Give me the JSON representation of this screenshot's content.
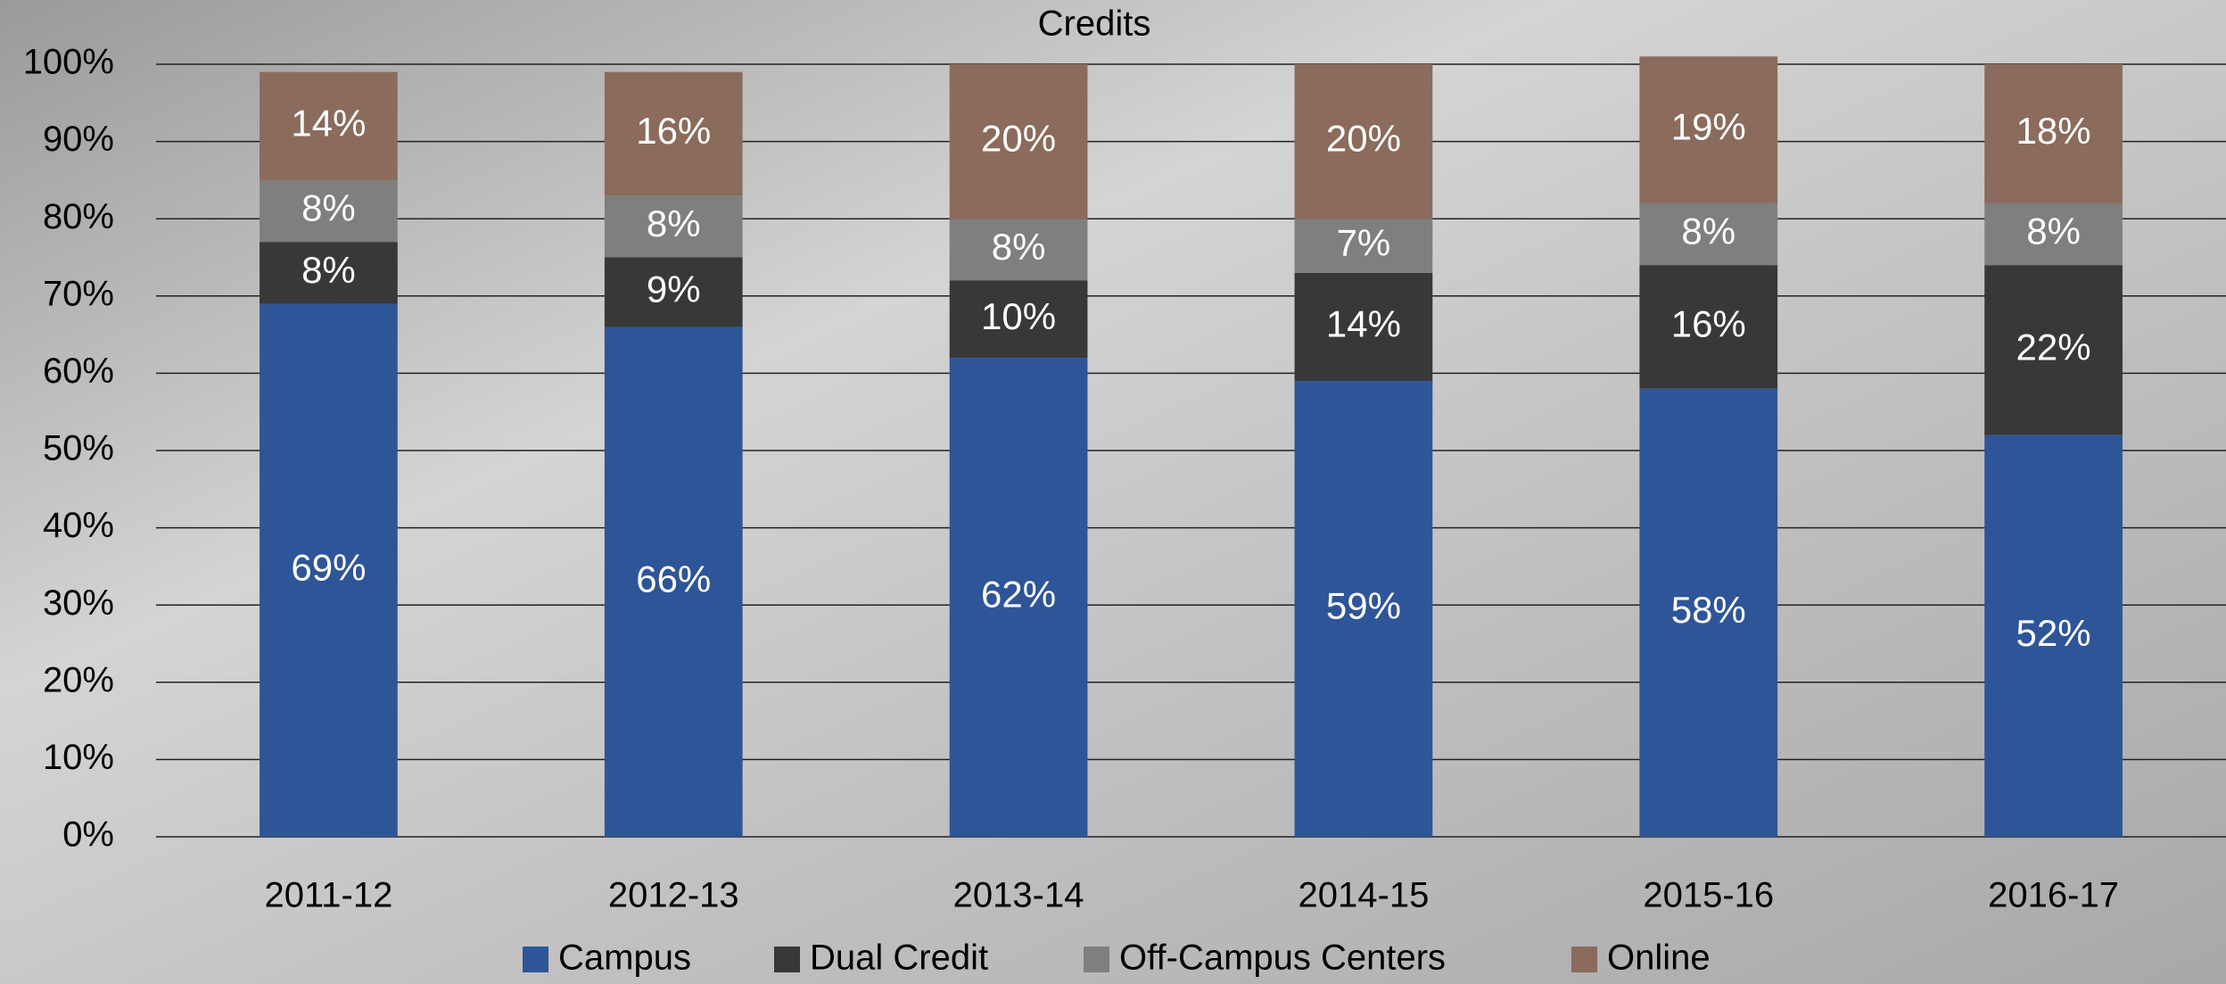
{
  "chart_data": {
    "type": "stacked_bar",
    "title": "Credits",
    "categories": [
      "2011-12",
      "2012-13",
      "2013-14",
      "2014-15",
      "2015-16",
      "2016-17"
    ],
    "series": [
      {
        "name": "Campus",
        "color": "#2e5597",
        "values": [
          69,
          66,
          62,
          59,
          58,
          52
        ],
        "value_labels": [
          "69%",
          "66%",
          "62%",
          "59%",
          "58%",
          "52%"
        ]
      },
      {
        "name": "Dual Credit",
        "color": "#383838",
        "values": [
          8,
          9,
          10,
          14,
          16,
          22
        ],
        "value_labels": [
          "8%",
          "9%",
          "10%",
          "14%",
          "16%",
          "22%"
        ]
      },
      {
        "name": "Off-Campus Centers",
        "color": "#7f7f7f",
        "values": [
          8,
          8,
          8,
          7,
          8,
          8
        ],
        "value_labels": [
          "8%",
          "8%",
          "8%",
          "7%",
          "8%",
          "8%"
        ]
      },
      {
        "name": "Online",
        "color": "#8a6b5c",
        "values": [
          14,
          16,
          20,
          20,
          19,
          18
        ],
        "value_labels": [
          "14%",
          "16%",
          "20%",
          "20%",
          "19%",
          "18%"
        ]
      }
    ],
    "ylim": [
      0,
      100
    ],
    "yticks": [
      {
        "value": 0,
        "label": "0%"
      },
      {
        "value": 10,
        "label": "10%"
      },
      {
        "value": 20,
        "label": "20%"
      },
      {
        "value": 30,
        "label": "30%"
      },
      {
        "value": 40,
        "label": "40%"
      },
      {
        "value": 50,
        "label": "50%"
      },
      {
        "value": 60,
        "label": "60%"
      },
      {
        "value": 70,
        "label": "70%"
      },
      {
        "value": 80,
        "label": "80%"
      },
      {
        "value": 90,
        "label": "90%"
      },
      {
        "value": 100,
        "label": "100%"
      }
    ],
    "grid": true,
    "legend": "bottom"
  }
}
